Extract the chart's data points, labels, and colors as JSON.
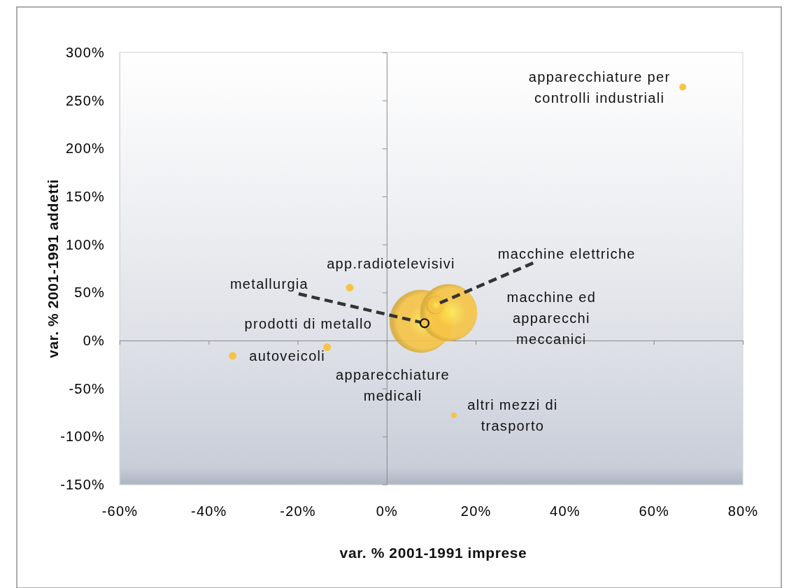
{
  "chart_data": {
    "type": "bubble",
    "xlabel": "var. % 2001-1991 imprese",
    "ylabel": "var. % 2001-1991 addetti",
    "x": [
      66.5,
      10.9,
      -8.3,
      8.5,
      7.7,
      13.9,
      -34.6,
      -13.4,
      15.1
    ],
    "series": [
      {
        "color": "#f6c445",
        "values": [
          264,
          37,
          55,
          18,
          20,
          29,
          -16,
          -7,
          -78
        ],
        "sizes": [
          0.012,
          0.085,
          0.015,
          0.018,
          1,
          0.83,
          0.015,
          0.015,
          0.008
        ]
      }
    ],
    "xlim": [
      -60,
      80
    ],
    "xticks": [
      {
        "value": -60,
        "label": "-60%"
      },
      {
        "value": -40,
        "label": "-40%"
      },
      {
        "value": -20,
        "label": "-20%"
      },
      {
        "value": 0,
        "label": "0%"
      },
      {
        "value": 20,
        "label": "20%"
      },
      {
        "value": 40,
        "label": "40%"
      },
      {
        "value": 60,
        "label": "60%"
      },
      {
        "value": 80,
        "label": "80%"
      }
    ],
    "ylim": [
      -150,
      300
    ],
    "yticks": [
      {
        "value": -150,
        "label": "-150%"
      },
      {
        "value": -100,
        "label": "-100%"
      },
      {
        "value": -50,
        "label": "-50%"
      },
      {
        "value": 0,
        "label": "0%"
      },
      {
        "value": 50,
        "label": "50%"
      },
      {
        "value": 100,
        "label": "100%"
      },
      {
        "value": 150,
        "label": "150%"
      },
      {
        "value": 200,
        "label": "200%"
      },
      {
        "value": 250,
        "label": "250%"
      },
      {
        "value": 300,
        "label": "300%"
      }
    ],
    "annotations": [
      {
        "text": "apparecchiature per controlli industriali",
        "x": 66.5,
        "y": 264
      },
      {
        "text": "macchine elettriche",
        "x": 10.9,
        "y": 37
      },
      {
        "text": "app.radiotelevisivi",
        "x": -8.3,
        "y": 55
      },
      {
        "text": "metallurgia",
        "x": 8.5,
        "y": 18
      },
      "prodotti di metallo",
      "macchine ed apparecchi meccanici",
      {
        "text": "autoveicoli",
        "x": -34.6,
        "y": -16
      },
      {
        "text": "apparecchiature medicali",
        "x": -13.4,
        "y": -7
      },
      {
        "text": "altri mezzi di trasporto",
        "x": 15.1,
        "y": -78
      }
    ]
  }
}
